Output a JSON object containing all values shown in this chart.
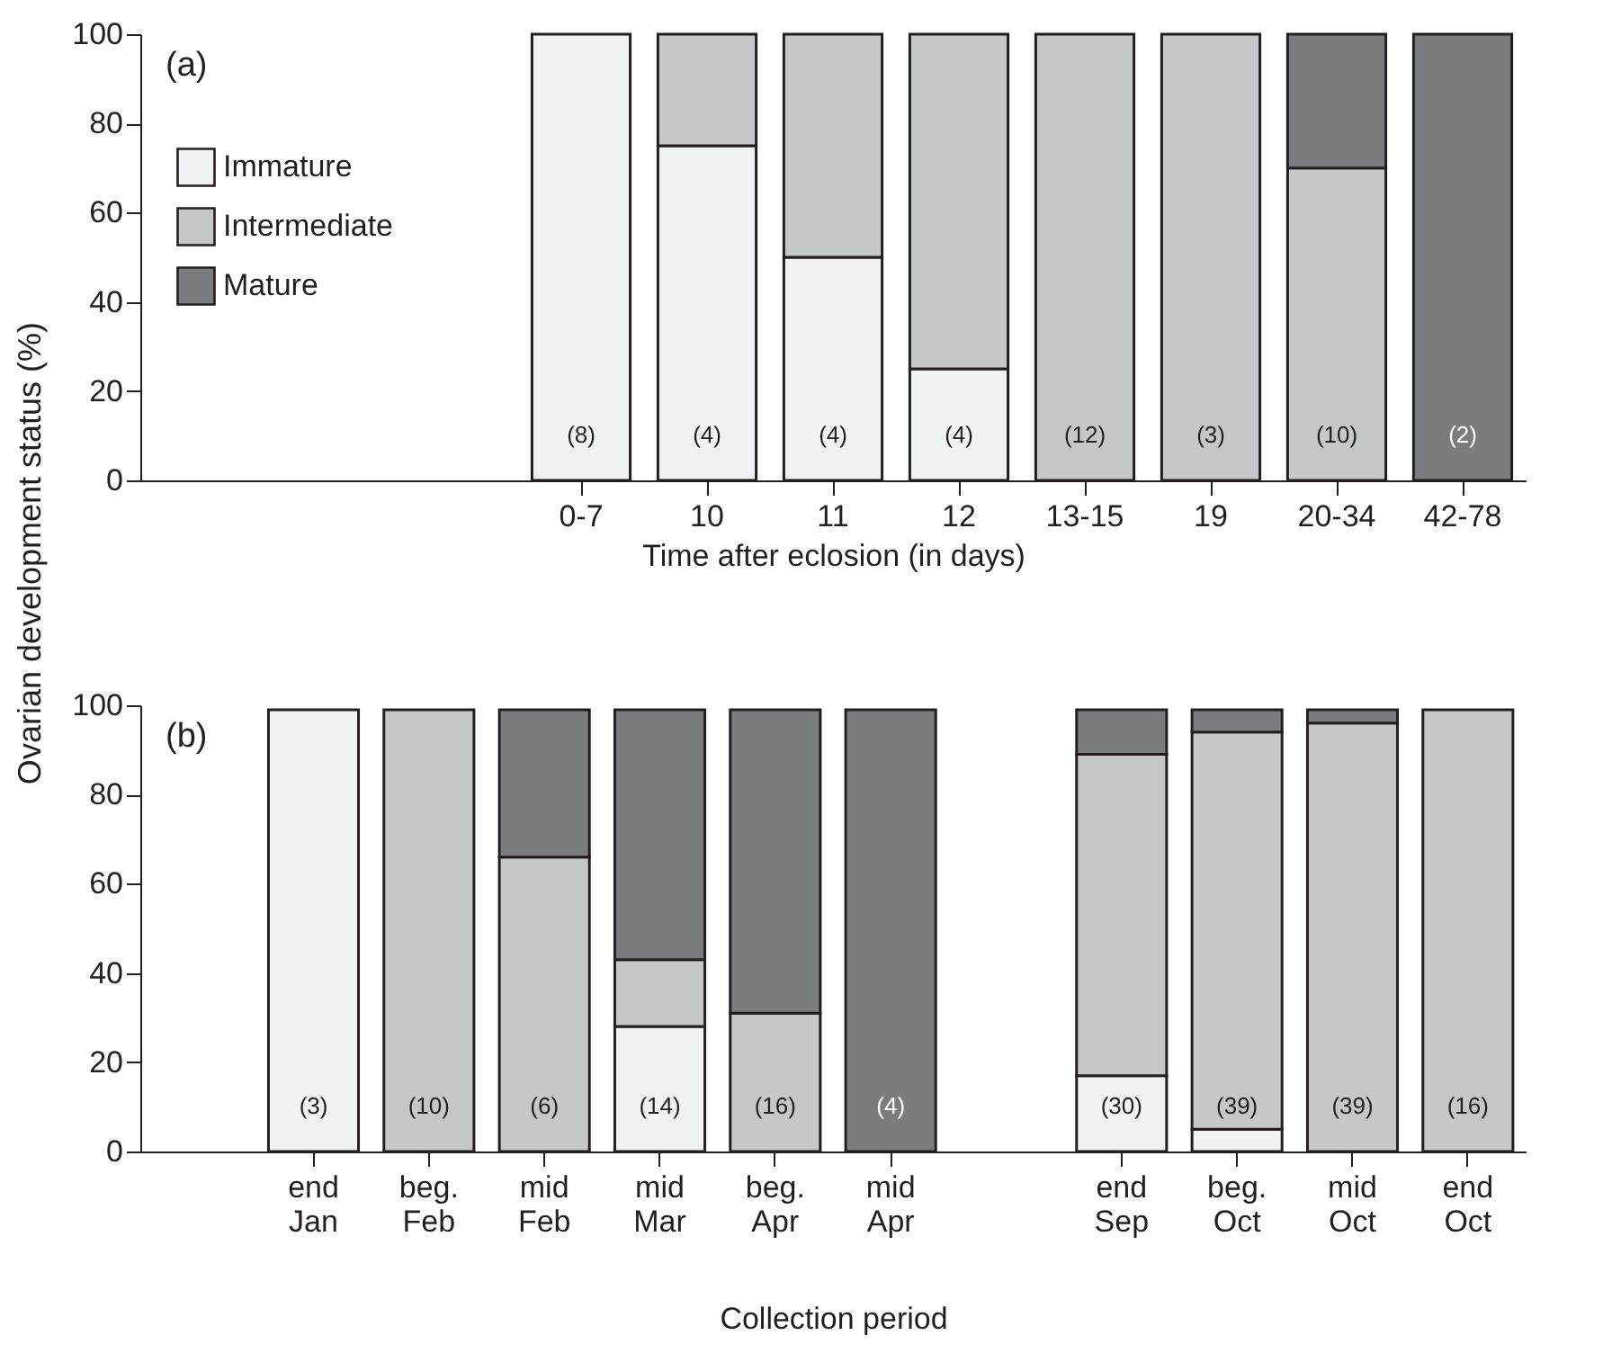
{
  "chart_data": [
    {
      "type": "bar",
      "stacked": true,
      "ylabel": "Ovarian development status (%)",
      "xlabel": "Time after eclosion (in days)",
      "categories": [
        null,
        null,
        null,
        "0-7",
        "10",
        "11",
        "12",
        "13-15",
        "19",
        "20-34",
        "42-78"
      ],
      "series": [
        {
          "name": "Immature",
          "color": "#f1f2f3",
          "values": [
            null,
            null,
            null,
            100,
            75,
            50,
            25,
            null,
            null,
            null,
            null
          ]
        },
        {
          "name": "Intermediate",
          "color": "#c6c7c9",
          "values": [
            null,
            null,
            null,
            null,
            25,
            50,
            75,
            100,
            100,
            70,
            null
          ]
        },
        {
          "name": "Mature",
          "color": "#7b7c80",
          "values": [
            null,
            null,
            null,
            null,
            null,
            null,
            null,
            null,
            null,
            30,
            100
          ]
        }
      ],
      "ylim": [
        0,
        100
      ],
      "yticks": [
        0,
        20,
        40,
        60,
        80,
        100
      ],
      "legend": "top left",
      "annotations": [
        "(a)",
        "(8)",
        "(4)",
        "(4)",
        "(4)",
        "(12)",
        "(3)",
        "(10)",
        "(2)"
      ]
    },
    {
      "type": "bar",
      "stacked": true,
      "xlabel": "Collection period",
      "categories": [
        null,
        "end Jan",
        "beg. Feb",
        "mid Feb",
        "mid Mar",
        "beg. Apr",
        "mid Apr",
        null,
        "end Sep",
        "beg. Oct",
        "mid Oct",
        "end Oct"
      ],
      "series": [
        {
          "name": "Immature",
          "color": "#f1f2f3",
          "values": [
            null,
            99,
            null,
            null,
            28,
            null,
            null,
            null,
            17,
            5,
            null,
            null
          ]
        },
        {
          "name": "Intermediate",
          "color": "#c6c7c9",
          "values": [
            null,
            null,
            99,
            66,
            15,
            31,
            null,
            null,
            72,
            89,
            96,
            99
          ]
        },
        {
          "name": "Mature",
          "color": "#7b7c80",
          "values": [
            null,
            null,
            null,
            33,
            56,
            68,
            99,
            null,
            10,
            5,
            3,
            null
          ]
        }
      ],
      "ylim": [
        0,
        100
      ],
      "yticks": [
        0,
        20,
        40,
        60,
        80,
        100
      ],
      "annotations": [
        "(b)",
        "(3)",
        "(10)",
        "(6)",
        "(14)",
        "(16)",
        "(4)",
        "(30)",
        "(39)",
        "(39)",
        "(16)"
      ]
    }
  ]
}
